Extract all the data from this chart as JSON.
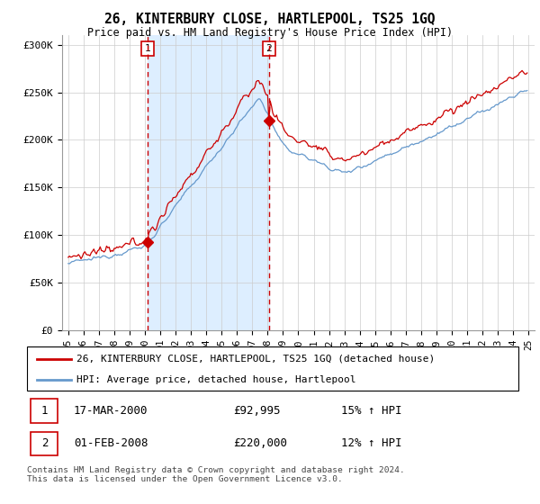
{
  "title": "26, KINTERBURY CLOSE, HARTLEPOOL, TS25 1GQ",
  "subtitle": "Price paid vs. HM Land Registry's House Price Index (HPI)",
  "legend_line1": "26, KINTERBURY CLOSE, HARTLEPOOL, TS25 1GQ (detached house)",
  "legend_line2": "HPI: Average price, detached house, Hartlepool",
  "transaction1_date": "17-MAR-2000",
  "transaction1_price": "£92,995",
  "transaction1_hpi": "15% ↑ HPI",
  "transaction2_date": "01-FEB-2008",
  "transaction2_price": "£220,000",
  "transaction2_hpi": "12% ↑ HPI",
  "footer": "Contains HM Land Registry data © Crown copyright and database right 2024.\nThis data is licensed under the Open Government Licence v3.0.",
  "line1_color": "#cc0000",
  "line2_color": "#6699cc",
  "vline_color": "#cc0000",
  "shade_color": "#ddeeff",
  "background_color": "#ffffff",
  "ylim": [
    0,
    310000
  ],
  "yticks": [
    0,
    50000,
    100000,
    150000,
    200000,
    250000,
    300000
  ],
  "ytick_labels": [
    "£0",
    "£50K",
    "£100K",
    "£150K",
    "£200K",
    "£250K",
    "£300K"
  ],
  "t1_year": 2000.208,
  "t2_year": 2008.083,
  "t1_price": 92995,
  "t2_price": 220000
}
